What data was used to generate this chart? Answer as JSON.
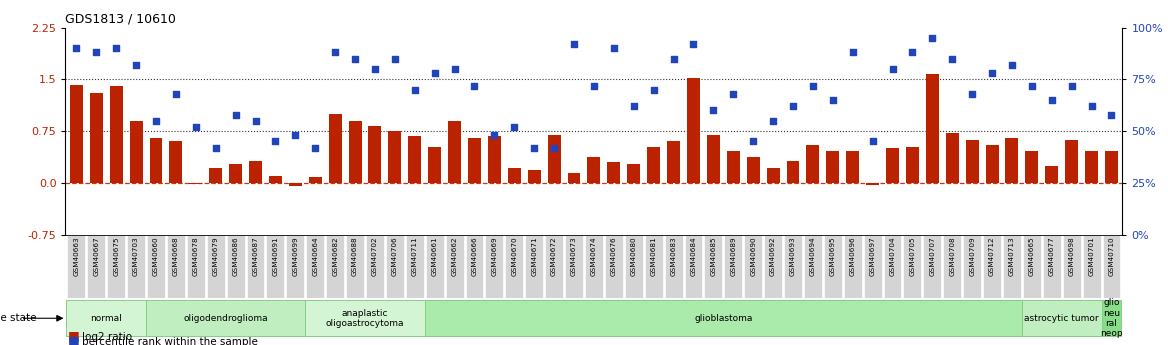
{
  "title": "GDS1813 / 10610",
  "samples": [
    "GSM40663",
    "GSM40667",
    "GSM40675",
    "GSM40703",
    "GSM40660",
    "GSM40668",
    "GSM40678",
    "GSM40679",
    "GSM40686",
    "GSM40687",
    "GSM40691",
    "GSM40699",
    "GSM40664",
    "GSM40682",
    "GSM40688",
    "GSM40702",
    "GSM40706",
    "GSM40711",
    "GSM40661",
    "GSM40662",
    "GSM40666",
    "GSM40669",
    "GSM40670",
    "GSM40671",
    "GSM40672",
    "GSM40673",
    "GSM40674",
    "GSM40676",
    "GSM40680",
    "GSM40681",
    "GSM40683",
    "GSM40684",
    "GSM40685",
    "GSM40689",
    "GSM40690",
    "GSM40692",
    "GSM40693",
    "GSM40694",
    "GSM40695",
    "GSM40696",
    "GSM40697",
    "GSM40704",
    "GSM40705",
    "GSM40707",
    "GSM40708",
    "GSM40709",
    "GSM40712",
    "GSM40713",
    "GSM40665",
    "GSM40677",
    "GSM40698",
    "GSM40701",
    "GSM40710"
  ],
  "log2_ratio": [
    1.42,
    1.3,
    1.4,
    0.9,
    0.65,
    0.6,
    -0.02,
    0.22,
    0.28,
    0.32,
    0.1,
    -0.05,
    0.08,
    1.0,
    0.9,
    0.82,
    0.75,
    0.68,
    0.52,
    0.9,
    0.65,
    0.68,
    0.22,
    0.18,
    0.7,
    0.15,
    0.38,
    0.3,
    0.28,
    0.52,
    0.6,
    1.52,
    0.7,
    0.46,
    0.38,
    0.22,
    0.32,
    0.55,
    0.46,
    0.46,
    -0.03,
    0.5,
    0.52,
    1.58,
    0.72,
    0.62,
    0.55,
    0.65,
    0.46,
    0.25,
    0.62,
    0.46,
    0.46
  ],
  "percentile": [
    90,
    88,
    90,
    82,
    55,
    68,
    52,
    42,
    58,
    55,
    45,
    48,
    42,
    88,
    85,
    80,
    85,
    70,
    78,
    80,
    72,
    48,
    52,
    42,
    42,
    92,
    72,
    90,
    62,
    70,
    85,
    92,
    60,
    68,
    45,
    55,
    62,
    72,
    65,
    88,
    45,
    80,
    88,
    95,
    85,
    68,
    78,
    82,
    72,
    65,
    72,
    62,
    58
  ],
  "groups": [
    {
      "label": "normal",
      "start": 0,
      "end": 3,
      "color": "#d4f5d4",
      "border": "#88cc88"
    },
    {
      "label": "oligodendroglioma",
      "start": 4,
      "end": 11,
      "color": "#c0eec0",
      "border": "#88cc88"
    },
    {
      "label": "anaplastic\noligoastrocytoma",
      "start": 12,
      "end": 17,
      "color": "#d4f5d4",
      "border": "#88cc88"
    },
    {
      "label": "glioblastoma",
      "start": 18,
      "end": 47,
      "color": "#aaeaaa",
      "border": "#88cc88"
    },
    {
      "label": "astrocytic tumor",
      "start": 48,
      "end": 51,
      "color": "#c0eec0",
      "border": "#88cc88"
    },
    {
      "label": "glio\nneu\nral\nneop",
      "start": 52,
      "end": 52,
      "color": "#88dd88",
      "border": "#88cc88"
    }
  ],
  "ylim_left": [
    -0.75,
    2.25
  ],
  "ylim_right": [
    0,
    100
  ],
  "yticks_left": [
    -0.75,
    0.0,
    0.75,
    1.5,
    2.25
  ],
  "yticks_right": [
    0,
    25,
    50,
    75,
    100
  ],
  "hlines": [
    0.0,
    0.75,
    1.5
  ],
  "bar_color": "#bb2200",
  "dot_color": "#2244bb",
  "fig_width": 11.68,
  "fig_height": 3.45
}
